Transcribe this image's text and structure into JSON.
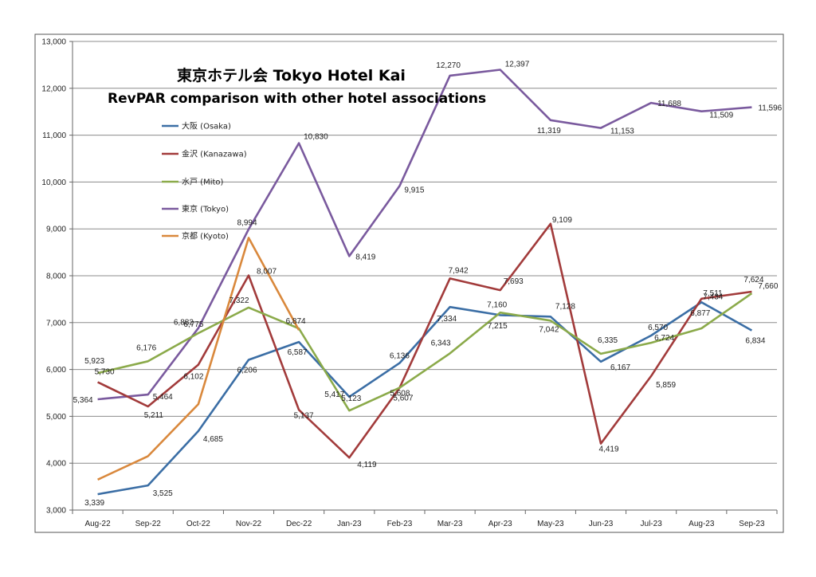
{
  "chart_data": {
    "type": "line",
    "title": "東京ホテル会  Tokyo Hotel Kai",
    "subtitle": "RevPAR comparison with other hotel associations",
    "xlabel": "",
    "ylabel": "",
    "ylim": [
      3000,
      13000
    ],
    "grid": true,
    "legend_position": "top-left",
    "categories": [
      "Aug-22",
      "Sep-22",
      "Oct-22",
      "Nov-22",
      "Dec-22",
      "Jan-23",
      "Feb-23",
      "Mar-23",
      "Apr-23",
      "May-23",
      "Jun-23",
      "Jul-23",
      "Aug-23",
      "Sep-23"
    ],
    "y_ticks": [
      3000,
      4000,
      5000,
      6000,
      7000,
      8000,
      9000,
      10000,
      11000,
      12000,
      13000
    ],
    "y_tick_labels": [
      "3,000",
      "4,000",
      "5,000",
      "6,000",
      "7,000",
      "8,000",
      "9,000",
      "10,000",
      "11,000",
      "12,000",
      "13,000"
    ],
    "series": [
      {
        "key": "osaka",
        "name": "大阪 (Osaka)",
        "color": "#3B6EA5",
        "values": [
          3339,
          3525,
          4685,
          6206,
          6587,
          5417,
          6136,
          7334,
          7160,
          7128,
          6167,
          6724,
          7434,
          6834
        ],
        "labels": [
          "3,339",
          "3,525",
          "4,685",
          "6,206",
          "6,587",
          "5,417",
          "6,136",
          "7,334",
          "7,160",
          "7,128",
          "6,167",
          "6,724",
          "7,434",
          "6,834"
        ]
      },
      {
        "key": "kanazawa",
        "name": "金沢 (Kanazawa)",
        "color": "#A23B3B",
        "values": [
          5730,
          5211,
          6102,
          8007,
          5137,
          4119,
          5607,
          7942,
          7693,
          9109,
          4419,
          5859,
          7511,
          7660
        ],
        "labels": [
          "5,730",
          "5,211",
          "6,102",
          "8,007",
          "5,137",
          "4,119",
          "5,607",
          "7,942",
          "7,693",
          "9,109",
          "4,419",
          "5,859",
          "7,511",
          "7,660"
        ]
      },
      {
        "key": "mito",
        "name": "水戸 (Mito)",
        "color": "#8BAA4A",
        "values": [
          5923,
          6176,
          6775,
          7322,
          6874,
          5123,
          5608,
          6343,
          7215,
          7042,
          6335,
          6570,
          6877,
          7624
        ],
        "labels": [
          "5,923",
          "6,176",
          "6,775",
          "7,322",
          "6,874",
          "5,123",
          "5,608",
          "6,343",
          "7,215",
          "7,042",
          "6,335",
          "6,570",
          "6,877",
          "7,624"
        ]
      },
      {
        "key": "tokyo",
        "name": "東京 (Tokyo)",
        "color": "#7A5A9E",
        "values": [
          5364,
          5464,
          6882,
          8994,
          10830,
          8419,
          9915,
          12270,
          12397,
          11319,
          11153,
          11688,
          11509,
          11596
        ],
        "labels": [
          "5,364",
          "5,464",
          "6,882",
          "8,994",
          "10,830",
          "8,419",
          "9,915",
          "12,270",
          "12,397",
          "11,319",
          "11,153",
          "11,688",
          "11,509",
          "11,596"
        ]
      },
      {
        "key": "kyoto",
        "name": "京都 (Kyoto)",
        "color": "#D9883C",
        "values": [
          3650,
          4150,
          5260,
          8810,
          6840,
          null,
          null,
          null,
          null,
          null,
          null,
          null,
          null,
          null
        ],
        "labels": []
      }
    ]
  }
}
